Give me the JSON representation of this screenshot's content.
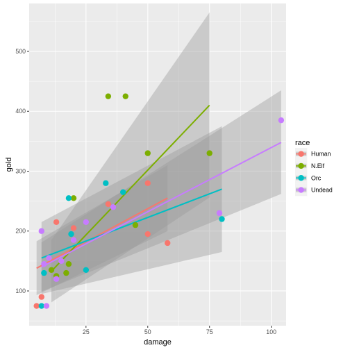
{
  "chart_data": {
    "type": "scatter",
    "title": "",
    "xlabel": "damage",
    "ylabel": "gold",
    "xlim": [
      2,
      106
    ],
    "ylim": [
      42,
      580
    ],
    "xticks": [
      25,
      50,
      75,
      100
    ],
    "yticks": [
      100,
      200,
      300,
      400,
      500
    ],
    "grid": true,
    "background": "#EBEBEB",
    "smoothing": "linear fit with confidence band",
    "legend": {
      "title": "race",
      "position": "right"
    },
    "series": [
      {
        "name": "Human",
        "color": "#F8766D",
        "points": [
          [
            5,
            75
          ],
          [
            7,
            90
          ],
          [
            13,
            215
          ],
          [
            20,
            205
          ],
          [
            34,
            245
          ],
          [
            50,
            195
          ],
          [
            50,
            280
          ],
          [
            58,
            180
          ]
        ],
        "fit": {
          "x": [
            5,
            58
          ],
          "y": [
            138,
            255
          ]
        },
        "band": {
          "upper": [
            183,
            310
          ],
          "lower": [
            93,
            200
          ]
        }
      },
      {
        "name": "N.Elf",
        "color": "#7CAE00",
        "points": [
          [
            11,
            135
          ],
          [
            13,
            125
          ],
          [
            17,
            130
          ],
          [
            18,
            145
          ],
          [
            20,
            255
          ],
          [
            34,
            425
          ],
          [
            41,
            425
          ],
          [
            45,
            210
          ],
          [
            50,
            330
          ],
          [
            75,
            330
          ]
        ],
        "fit": {
          "x": [
            11,
            75
          ],
          "y": [
            133,
            410
          ]
        },
        "band": {
          "upper": [
            185,
            565
          ],
          "lower": [
            81,
            256
          ]
        }
      },
      {
        "name": "Orc",
        "color": "#00BFC4",
        "points": [
          [
            7,
            75
          ],
          [
            8,
            130
          ],
          [
            18,
            255
          ],
          [
            19,
            195
          ],
          [
            25,
            135
          ],
          [
            33,
            280
          ],
          [
            40,
            265
          ],
          [
            80,
            220
          ]
        ],
        "fit": {
          "x": [
            7,
            80
          ],
          "y": [
            155,
            270
          ]
        },
        "band": {
          "upper": [
            215,
            375
          ],
          "lower": [
            95,
            165
          ]
        }
      },
      {
        "name": "Undead",
        "color": "#C77CFF",
        "points": [
          [
            7,
            200
          ],
          [
            8,
            145
          ],
          [
            9,
            75
          ],
          [
            10,
            155
          ],
          [
            13,
            120
          ],
          [
            15,
            150
          ],
          [
            20,
            185
          ],
          [
            25,
            215
          ],
          [
            36,
            240
          ],
          [
            79,
            230
          ],
          [
            104,
            385
          ]
        ],
        "fit": {
          "x": [
            7,
            104
          ],
          "y": [
            140,
            348
          ]
        },
        "band": {
          "upper": [
            181,
            435
          ],
          "lower": [
            99,
            262
          ]
        }
      }
    ]
  }
}
